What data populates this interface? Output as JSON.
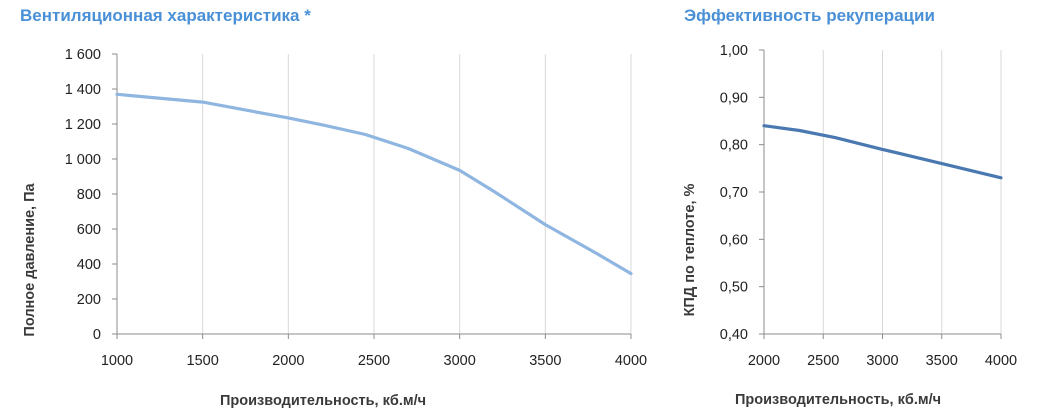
{
  "chart_data": [
    {
      "type": "line",
      "title": "Вентиляционная характеристика *",
      "xlabel": "Производительность, кб.м/ч",
      "ylabel": "Полное  давление, Па",
      "xlim": [
        1000,
        4000
      ],
      "ylim": [
        0,
        1600
      ],
      "x_ticks": [
        "1000",
        "1500",
        "2000",
        "2500",
        "3000",
        "3500",
        "4000"
      ],
      "y_ticks": [
        "0",
        "200",
        "400",
        "600",
        "800",
        "1 000",
        "1 200",
        "1 400",
        "1 600"
      ],
      "grid": "vertical",
      "line_color": "#8fb6e0",
      "series": [
        {
          "x": [
            1000,
            1500,
            2000,
            2200,
            2450,
            2700,
            3000,
            3200,
            3500,
            3800,
            4000
          ],
          "y": [
            1370,
            1325,
            1235,
            1195,
            1140,
            1060,
            935,
            815,
            625,
            460,
            345
          ]
        }
      ]
    },
    {
      "type": "line",
      "title": "Эффективность рекуперации",
      "xlabel": "Производительность, кб.м/ч",
      "ylabel": "КПД по теплоте, %",
      "xlim": [
        2000,
        4000
      ],
      "ylim": [
        0.4,
        1.0
      ],
      "x_ticks": [
        "2000",
        "2500",
        "3000",
        "3500",
        "4000"
      ],
      "y_ticks": [
        "0,40",
        "0,50",
        "0,60",
        "0,70",
        "0,80",
        "0,90",
        "1,00"
      ],
      "grid": "vertical",
      "line_color": "#4a78b0",
      "series": [
        {
          "x": [
            2000,
            2300,
            2600,
            3000,
            3500,
            4000
          ],
          "y": [
            0.84,
            0.83,
            0.815,
            0.79,
            0.76,
            0.73
          ]
        }
      ]
    }
  ]
}
